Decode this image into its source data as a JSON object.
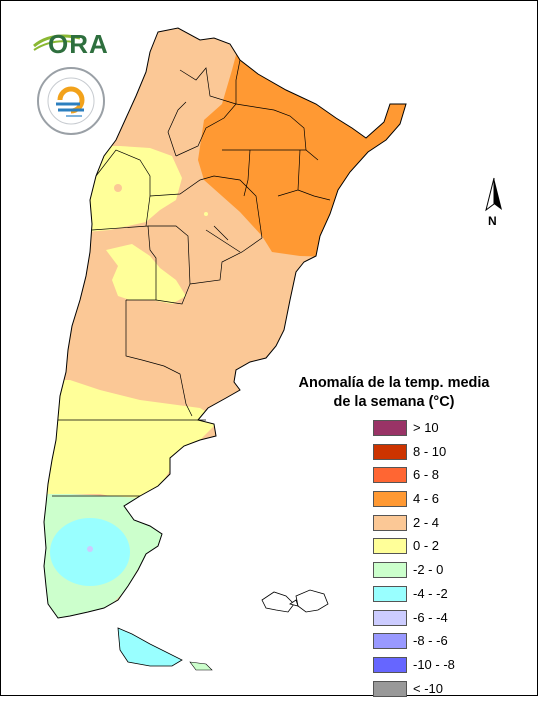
{
  "legend": {
    "title_line1": "Anomalía de la temp. media",
    "title_line2": "de la semana (°C)",
    "items": [
      {
        "label": "> 10",
        "color": "#993366"
      },
      {
        "label": "8 - 10",
        "color": "#cc3300"
      },
      {
        "label": "6 - 8",
        "color": "#ff6633"
      },
      {
        "label": "4 - 6",
        "color": "#ff9933"
      },
      {
        "label": "2 - 4",
        "color": "#fbc896"
      },
      {
        "label": "0 - 2",
        "color": "#ffff99"
      },
      {
        "label": "-2 - 0",
        "color": "#ccffcc"
      },
      {
        "label": "-4 - -2",
        "color": "#99ffff"
      },
      {
        "label": "-6 - -4",
        "color": "#ccccff"
      },
      {
        "label": "-8 - -6",
        "color": "#9999ff"
      },
      {
        "label": "-10 - -8",
        "color": "#6666ff"
      },
      {
        "label": "< -10",
        "color": "#999999"
      }
    ]
  },
  "logo": {
    "text": "ORA"
  },
  "north": {
    "label": "N"
  }
}
